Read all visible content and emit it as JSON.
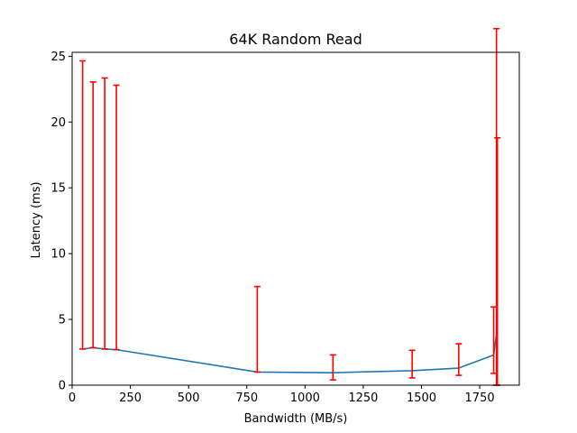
{
  "chart_data": {
    "type": "line",
    "title": "64K  Random Read",
    "xlabel": "Bandwidth (MB/s)",
    "ylabel": "Latency (ms)",
    "xlim": [
      0,
      1920
    ],
    "ylim": [
      0,
      25.3
    ],
    "xticks": [
      0,
      250,
      500,
      750,
      1000,
      1250,
      1500,
      1750
    ],
    "yticks": [
      0,
      5,
      10,
      15,
      20,
      25
    ],
    "grid": false,
    "line_color": "#1f77b4",
    "errorbar_color": "#ff0000",
    "series": [
      {
        "x": [
          45,
          90,
          140,
          190,
          795,
          1120,
          1460,
          1660,
          1810,
          1822,
          1826
        ],
        "y": [
          2.75,
          2.85,
          2.75,
          2.7,
          1.0,
          0.95,
          1.1,
          1.3,
          2.3,
          3.9,
          9.4
        ],
        "yerr_low": [
          0,
          0,
          0,
          0,
          0,
          0.55,
          0.55,
          0.55,
          1.4,
          3.9,
          9.4
        ],
        "yerr_high": [
          21.9,
          20.2,
          20.6,
          20.1,
          6.5,
          1.35,
          1.55,
          1.85,
          3.65,
          23.2,
          9.4
        ]
      }
    ]
  }
}
